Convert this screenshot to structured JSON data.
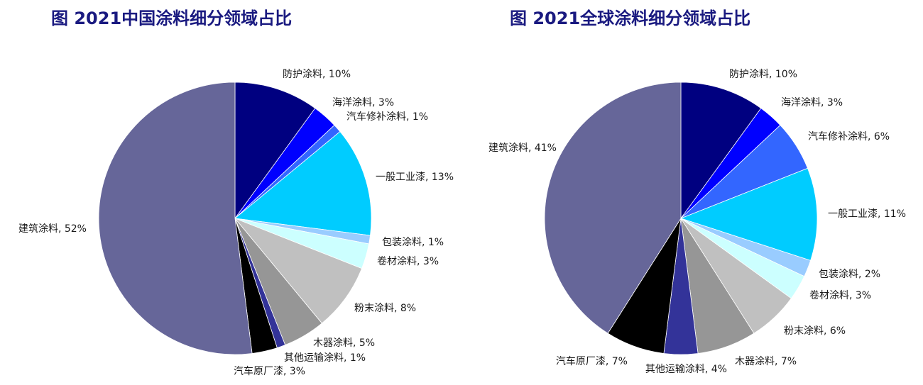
{
  "chart_data": [
    {
      "type": "pie",
      "title": "图 2021中国涂料细分领域占比",
      "slices": [
        {
          "label": "防护涂料",
          "value": 10,
          "text": "防护涂料, 10%",
          "color": "#000080"
        },
        {
          "label": "海洋涂料",
          "value": 3,
          "text": "海洋涂料, 3%",
          "color": "#0000ff"
        },
        {
          "label": "汽车修补涂料",
          "value": 1,
          "text": "汽车修补涂料, 1%",
          "color": "#3366ff"
        },
        {
          "label": "一般工业漆",
          "value": 13,
          "text": "一般工业漆, 13%",
          "color": "#00ccff"
        },
        {
          "label": "包装涂料",
          "value": 1,
          "text": "包装涂料, 1%",
          "color": "#99ccff"
        },
        {
          "label": "卷材涂料",
          "value": 3,
          "text": "卷材涂料, 3%",
          "color": "#ccffff"
        },
        {
          "label": "粉末涂料",
          "value": 8,
          "text": "粉末涂料, 8%",
          "color": "#c0c0c0"
        },
        {
          "label": "木器涂料",
          "value": 5,
          "text": "木器涂料, 5%",
          "color": "#969696"
        },
        {
          "label": "其他运输涂料",
          "value": 1,
          "text": "其他运输涂料, 1%",
          "color": "#333399"
        },
        {
          "label": "汽车原厂漆",
          "value": 3,
          "text": "汽车原厂漆, 3%",
          "color": "#000000"
        },
        {
          "label": "建筑涂料",
          "value": 52,
          "text": "建筑涂料, 52%",
          "color": "#666699"
        }
      ]
    },
    {
      "type": "pie",
      "title": "图 2021全球涂料细分领域占比",
      "slices": [
        {
          "label": "防护涂料",
          "value": 10,
          "text": "防护涂料, 10%",
          "color": "#000080"
        },
        {
          "label": "海洋涂料",
          "value": 3,
          "text": "海洋涂料, 3%",
          "color": "#0000ff"
        },
        {
          "label": "汽车修补涂料",
          "value": 6,
          "text": "汽车修补涂料, 6%",
          "color": "#3366ff"
        },
        {
          "label": "一般工业漆",
          "value": 11,
          "text": "一般工业漆, 11%",
          "color": "#00ccff"
        },
        {
          "label": "包装涂料",
          "value": 2,
          "text": "包装涂料, 2%",
          "color": "#99ccff"
        },
        {
          "label": "卷材涂料",
          "value": 3,
          "text": "卷材涂料, 3%",
          "color": "#ccffff"
        },
        {
          "label": "粉末涂料",
          "value": 6,
          "text": "粉末涂料, 6%",
          "color": "#c0c0c0"
        },
        {
          "label": "木器涂料",
          "value": 7,
          "text": "木器涂料, 7%",
          "color": "#969696"
        },
        {
          "label": "其他运输涂料",
          "value": 4,
          "text": "其他运输涂料, 4%",
          "color": "#333399"
        },
        {
          "label": "汽车原厂漆",
          "value": 7,
          "text": "汽车原厂漆, 7%",
          "color": "#000000"
        },
        {
          "label": "建筑涂料",
          "value": 41,
          "text": "建筑涂料, 41%",
          "color": "#666699"
        }
      ]
    }
  ]
}
